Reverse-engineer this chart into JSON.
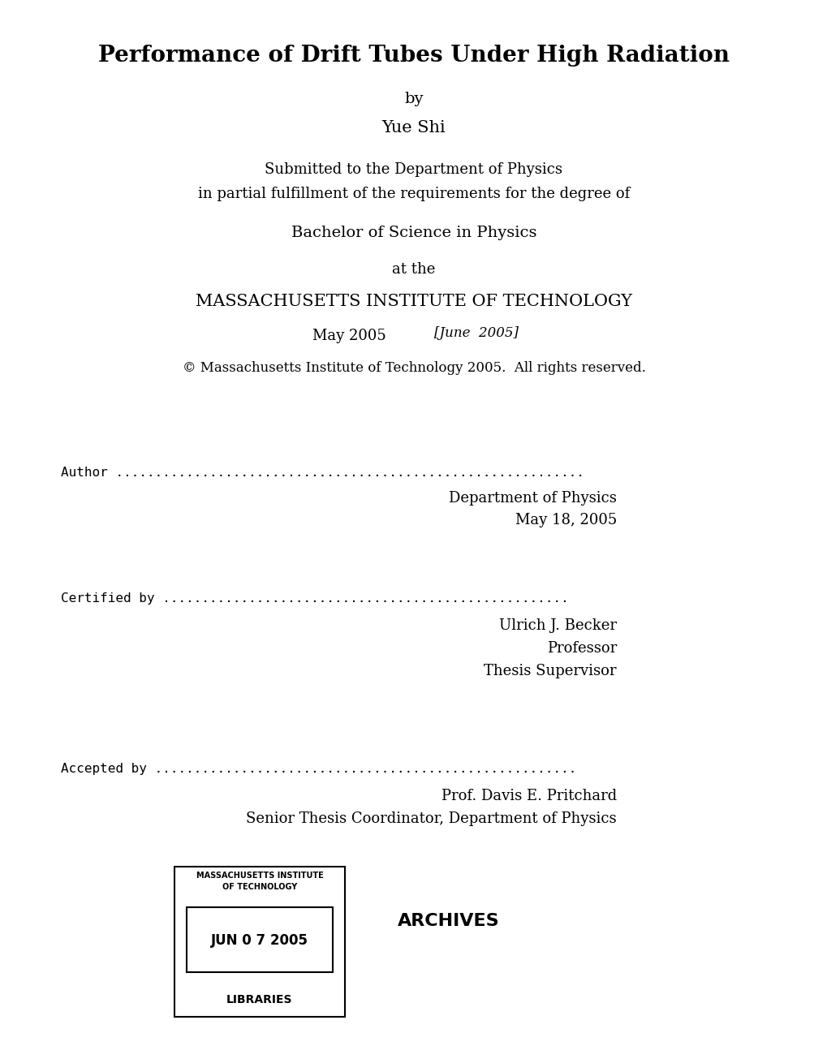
{
  "title": "Performance of Drift Tubes Under High Radiation",
  "by": "by",
  "author_name": "Yue Shi",
  "submitted_line1": "Submitted to the Department of Physics",
  "submitted_line2": "in partial fulfillment of the requirements for the degree of",
  "degree": "Bachelor of Science in Physics",
  "at_the": "at the",
  "institution": "MASSACHUSETTS INSTITUTE OF TECHNOLOGY",
  "date_typed": "May 2005",
  "date_handwritten": "[June  2005]",
  "copyright": "© Massachusetts Institute of Technology 2005.  All rights reserved.",
  "author_label": "Author",
  "author_dept": "Department of Physics",
  "author_date": "May 18, 2005",
  "certified_label": "Certified by",
  "certified_name": "Ulrich J. Becker",
  "certified_title1": "Professor",
  "certified_title2": "Thesis Supervisor",
  "accepted_label": "Accepted by",
  "accepted_name": "Prof. Davis E. Pritchard",
  "accepted_title": "Senior Thesis Coordinator, Department of Physics",
  "stamp_line1": "MASSACHUSETTS INSTITUTE",
  "stamp_line2": "OF TECHNOLOGY",
  "stamp_date": "JUN 0 7 2005",
  "stamp_bottom": "LIBRARIES",
  "archives": "ARCHIVES",
  "bg_color": "#ffffff",
  "text_color": "#000000",
  "title_fontsize": 20,
  "body_fontsize": 13,
  "small_fontsize": 12,
  "label_fontsize": 12,
  "inst_fontsize": 15
}
